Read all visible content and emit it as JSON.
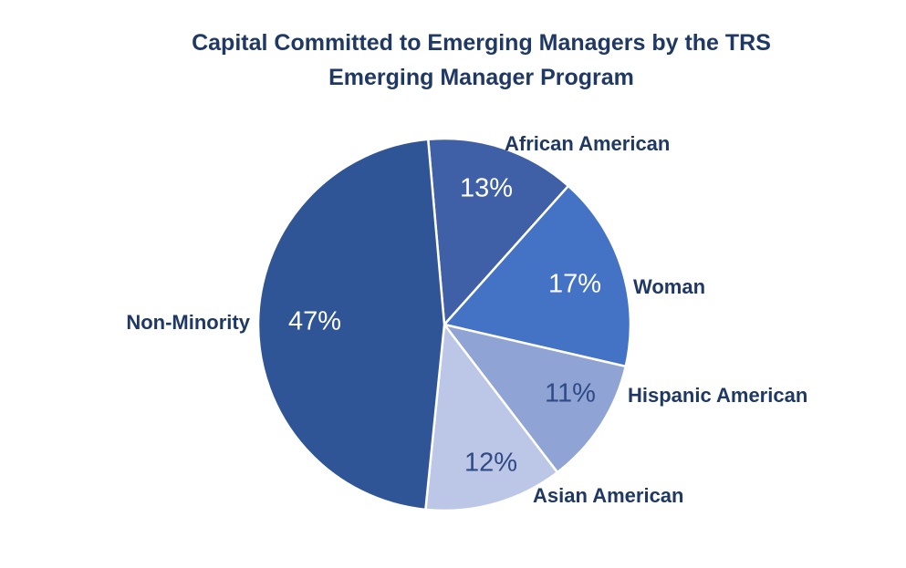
{
  "chart_data": {
    "type": "pie",
    "title": "Capital Committed to Emerging Managers by the TRS Emerging Manager Program",
    "title_lines": [
      "Capital Committed to Emerging Managers by the TRS",
      "Emerging Manager Program"
    ],
    "slices": [
      {
        "label": "African American",
        "value": 13,
        "display": "13%",
        "color": "#3f5fa6"
      },
      {
        "label": "Woman",
        "value": 17,
        "display": "17%",
        "color": "#4472c4"
      },
      {
        "label": "Hispanic American",
        "value": 11,
        "display": "11%",
        "color": "#8fa3d4"
      },
      {
        "label": "Asian American",
        "value": 12,
        "display": "12%",
        "color": "#bcc6e6"
      },
      {
        "label": "Non-Minority",
        "value": 47,
        "display": "47%",
        "color": "#2f5597"
      }
    ],
    "start_angle_deg": -5,
    "direction": "clockwise",
    "legend": "none (category labels beside slices)"
  }
}
